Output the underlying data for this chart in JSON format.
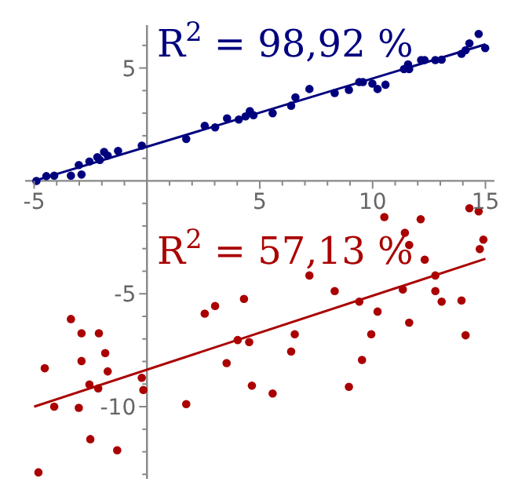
{
  "chart_data": {
    "type": "scatter",
    "legend": false,
    "grid": false,
    "xlim": [
      -5.4,
      15.4
    ],
    "ylim": [
      -13.2,
      6.9
    ],
    "xticks": [
      {
        "value": -5,
        "label": "-5"
      },
      {
        "value": -4,
        "label": null
      },
      {
        "value": -3,
        "label": null
      },
      {
        "value": -2,
        "label": null
      },
      {
        "value": -1,
        "label": null
      },
      {
        "value": 1,
        "label": null
      },
      {
        "value": 2,
        "label": null
      },
      {
        "value": 3,
        "label": null
      },
      {
        "value": 4,
        "label": null
      },
      {
        "value": 5,
        "label": "5"
      },
      {
        "value": 6,
        "label": null
      },
      {
        "value": 7,
        "label": null
      },
      {
        "value": 8,
        "label": null
      },
      {
        "value": 9,
        "label": null
      },
      {
        "value": 10,
        "label": "10"
      },
      {
        "value": 11,
        "label": null
      },
      {
        "value": 12,
        "label": null
      },
      {
        "value": 13,
        "label": null
      },
      {
        "value": 14,
        "label": null
      },
      {
        "value": 15,
        "label": "15"
      }
    ],
    "yticks": [
      {
        "value": 6,
        "label": null
      },
      {
        "value": 5,
        "label": "5"
      },
      {
        "value": 4,
        "label": null
      },
      {
        "value": 3,
        "label": null
      },
      {
        "value": 2,
        "label": null
      },
      {
        "value": 1,
        "label": null
      },
      {
        "value": -1,
        "label": null
      },
      {
        "value": -2,
        "label": null
      },
      {
        "value": -3,
        "label": null
      },
      {
        "value": -4,
        "label": null
      },
      {
        "value": -5,
        "label": "-5"
      },
      {
        "value": -6,
        "label": null
      },
      {
        "value": -7,
        "label": null
      },
      {
        "value": -8,
        "label": null
      },
      {
        "value": -9,
        "label": null
      },
      {
        "value": -10,
        "label": "-10"
      },
      {
        "value": -11,
        "label": null
      },
      {
        "value": -12,
        "label": null
      },
      {
        "value": -13,
        "label": null
      }
    ],
    "annotations": [
      "R$^{2}$ = 98,92 %",
      "R$^{2}$ = 57,13 %"
    ],
    "series": [
      {
        "marker": "circle",
        "color": "#00007f",
        "x": [
          -4.9,
          -4.46,
          -4.11,
          -3.37,
          -3.02,
          -2.9,
          -2.55,
          -2.2,
          -2.09,
          -1.9,
          -1.74,
          -1.28,
          -0.23,
          1.74,
          2.56,
          3.02,
          3.55,
          4.07,
          4.37,
          4.56,
          4.72,
          5.57,
          6.39,
          6.58,
          7.2,
          8.32,
          8.95,
          9.41,
          9.57,
          9.99,
          10.22,
          10.57,
          11.39,
          11.57,
          11.62,
          12.15,
          12.3,
          12.78,
          13.06,
          13.94,
          14.12,
          14.29,
          14.7,
          14.87,
          14.99
        ],
        "values": [
          0,
          0.21,
          0.23,
          0.23,
          0.7,
          0.28,
          0.86,
          1.05,
          0.93,
          1.28,
          1.12,
          1.33,
          1.56,
          1.86,
          2.44,
          2.37,
          2.77,
          2.72,
          2.86,
          3.09,
          2.91,
          3.0,
          3.33,
          3.7,
          4.07,
          3.89,
          4.03,
          4.38,
          4.38,
          4.31,
          4.07,
          4.26,
          4.95,
          5.16,
          4.95,
          5.35,
          5.35,
          5.35,
          5.37,
          5.63,
          5.79,
          6.09,
          6.51,
          null,
          5.88
        ]
      },
      {
        "type": "line",
        "marker": "none",
        "color": "#00007f",
        "x": [
          -5,
          15
        ],
        "values": [
          0,
          6.05
        ]
      },
      {
        "marker": "circle",
        "color": "#aa0000",
        "x": [
          -3.37,
          -4.53,
          -2.9,
          -2.13,
          -1.85,
          -2.9,
          -1.74,
          -2.55,
          -2.16,
          -4.11,
          -3.02,
          -2.51,
          -1.32,
          -4.81,
          -0.23,
          -0.16,
          1.74,
          2.56,
          3.02,
          4.3,
          4.02,
          4.53,
          3.53,
          4.65,
          5.57,
          6.39,
          6.55,
          7.2,
          8.32,
          8.95,
          9.41,
          9.53,
          9.94,
          10.22,
          10.52,
          11.34,
          11.43,
          11.62,
          11.62,
          12.13,
          12.31,
          12.78,
          12.78,
          13.06,
          13.94,
          14.12,
          14.29,
          14.7,
          14.75,
          14.91
        ],
        "values": [
          -6.12,
          -8.3,
          -6.75,
          -6.75,
          -7.63,
          -7.98,
          -8.44,
          -9.02,
          -9.19,
          -10.0,
          -10.05,
          -11.44,
          -11.93,
          -12.91,
          -8.72,
          -9.26,
          -9.89,
          -5.88,
          -5.54,
          -5.23,
          -7.05,
          -7.14,
          -8.07,
          -9.07,
          -9.42,
          -7.56,
          -6.79,
          -4.19,
          -4.88,
          -9.12,
          -5.35,
          -7.93,
          -6.79,
          -5.79,
          -1.6,
          -4.81,
          -2.3,
          -2.84,
          -6.28,
          -1.7,
          -3.49,
          -4.19,
          -4.88,
          -5.35,
          -5.3,
          -6.84,
          -1.21,
          -1.35,
          -3.02,
          -2.6
        ]
      },
      {
        "type": "line",
        "marker": "none",
        "color": "#aa0000",
        "x": [
          -5,
          15
        ],
        "values": [
          -10,
          -3.45
        ]
      }
    ]
  }
}
